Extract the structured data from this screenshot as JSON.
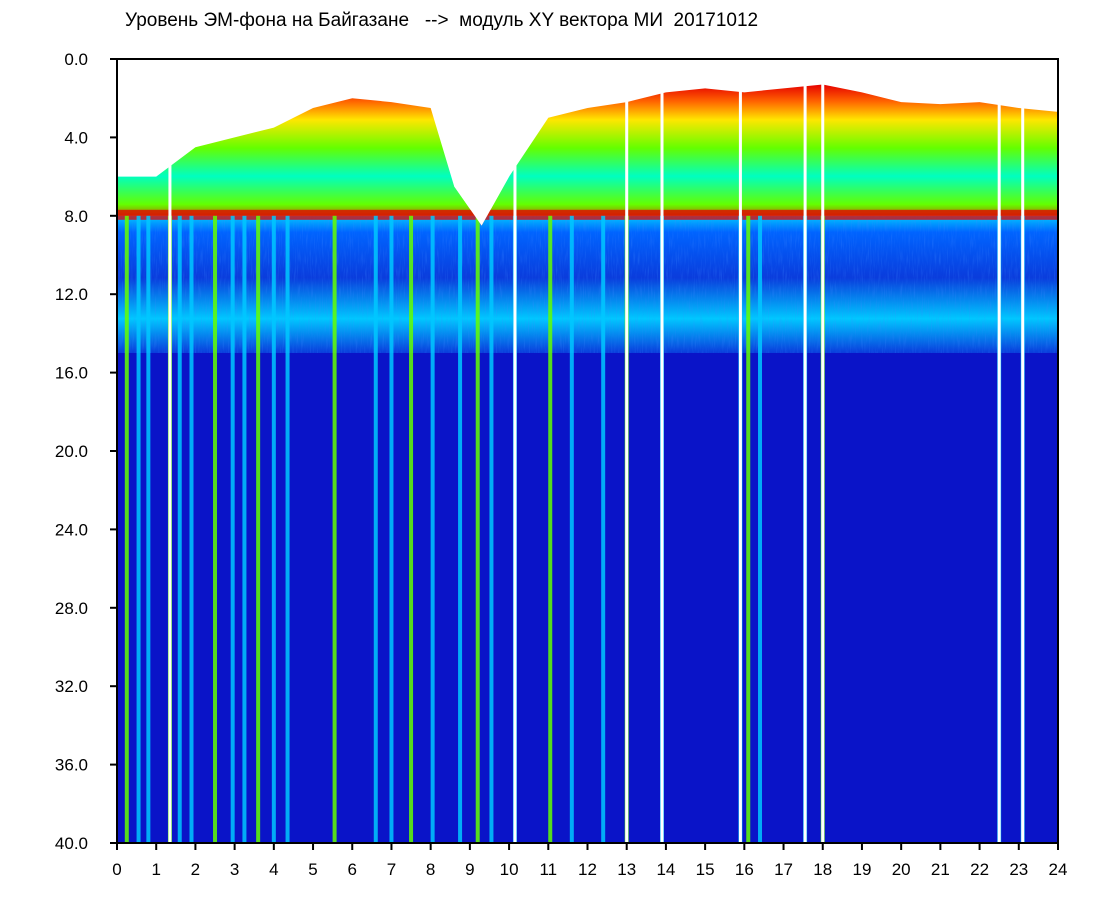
{
  "chart_data": {
    "type": "heatmap",
    "title": "Уровень ЭМ-фона на Байгазане   -->  модуль XY вектора МИ  20171012",
    "xlabel": "",
    "ylabel": "",
    "xlim": [
      0,
      24
    ],
    "ylim": [
      40.0,
      0.0
    ],
    "x_ticks": [
      "0",
      "1",
      "2",
      "3",
      "4",
      "5",
      "6",
      "7",
      "8",
      "9",
      "10",
      "11",
      "12",
      "13",
      "14",
      "15",
      "16",
      "17",
      "18",
      "19",
      "20",
      "21",
      "22",
      "23",
      "24"
    ],
    "y_ticks": [
      "0.0",
      "4.0",
      "8.0",
      "12.0",
      "16.0",
      "20.0",
      "24.0",
      "28.0",
      "32.0",
      "36.0",
      "40.0"
    ],
    "colormap": [
      "#0a14c8",
      "#0a3cdc",
      "#0064ff",
      "#00c8ff",
      "#00ffc0",
      "#64ff00",
      "#ffe600",
      "#ff6400",
      "#e60000",
      "#ffffff"
    ],
    "background_color": "#ffffff",
    "upper_band_top_y": [
      [
        0,
        6.0
      ],
      [
        1,
        6.0
      ],
      [
        2,
        4.5
      ],
      [
        3,
        4.0
      ],
      [
        4,
        3.5
      ],
      [
        5,
        2.5
      ],
      [
        6,
        2.0
      ],
      [
        7,
        2.2
      ],
      [
        8,
        2.5
      ],
      [
        8.6,
        6.5
      ],
      [
        9.3,
        8.5
      ],
      [
        10.0,
        6.0
      ],
      [
        11,
        3.0
      ],
      [
        12,
        2.5
      ],
      [
        13,
        2.2
      ],
      [
        14,
        1.7
      ],
      [
        15,
        1.5
      ],
      [
        16,
        1.7
      ],
      [
        17,
        1.5
      ],
      [
        18,
        1.3
      ],
      [
        19,
        1.7
      ],
      [
        20,
        2.2
      ],
      [
        21,
        2.3
      ],
      [
        22,
        2.2
      ],
      [
        23,
        2.5
      ],
      [
        24,
        2.7
      ]
    ],
    "upper_band_bottom_y": 8.0,
    "middle_band_y": [
      8.0,
      15.0
    ],
    "lower_field_y": [
      15.0,
      40.0
    ],
    "vertical_streaks_x": [
      0.25,
      0.55,
      0.8,
      1.35,
      1.6,
      1.9,
      2.5,
      2.95,
      3.25,
      3.6,
      4.0,
      4.35,
      5.55,
      6.6,
      7.0,
      7.5,
      8.05,
      8.75,
      9.2,
      9.55,
      10.15,
      11.05,
      11.6,
      12.4,
      13.0,
      13.9,
      15.9,
      16.1,
      16.4,
      17.55,
      18.0,
      22.5,
      23.1
    ],
    "bright_streaks_x": [
      1.35,
      10.15,
      13.0,
      13.9,
      15.9,
      17.55,
      18.0,
      22.5,
      23.1
    ]
  }
}
